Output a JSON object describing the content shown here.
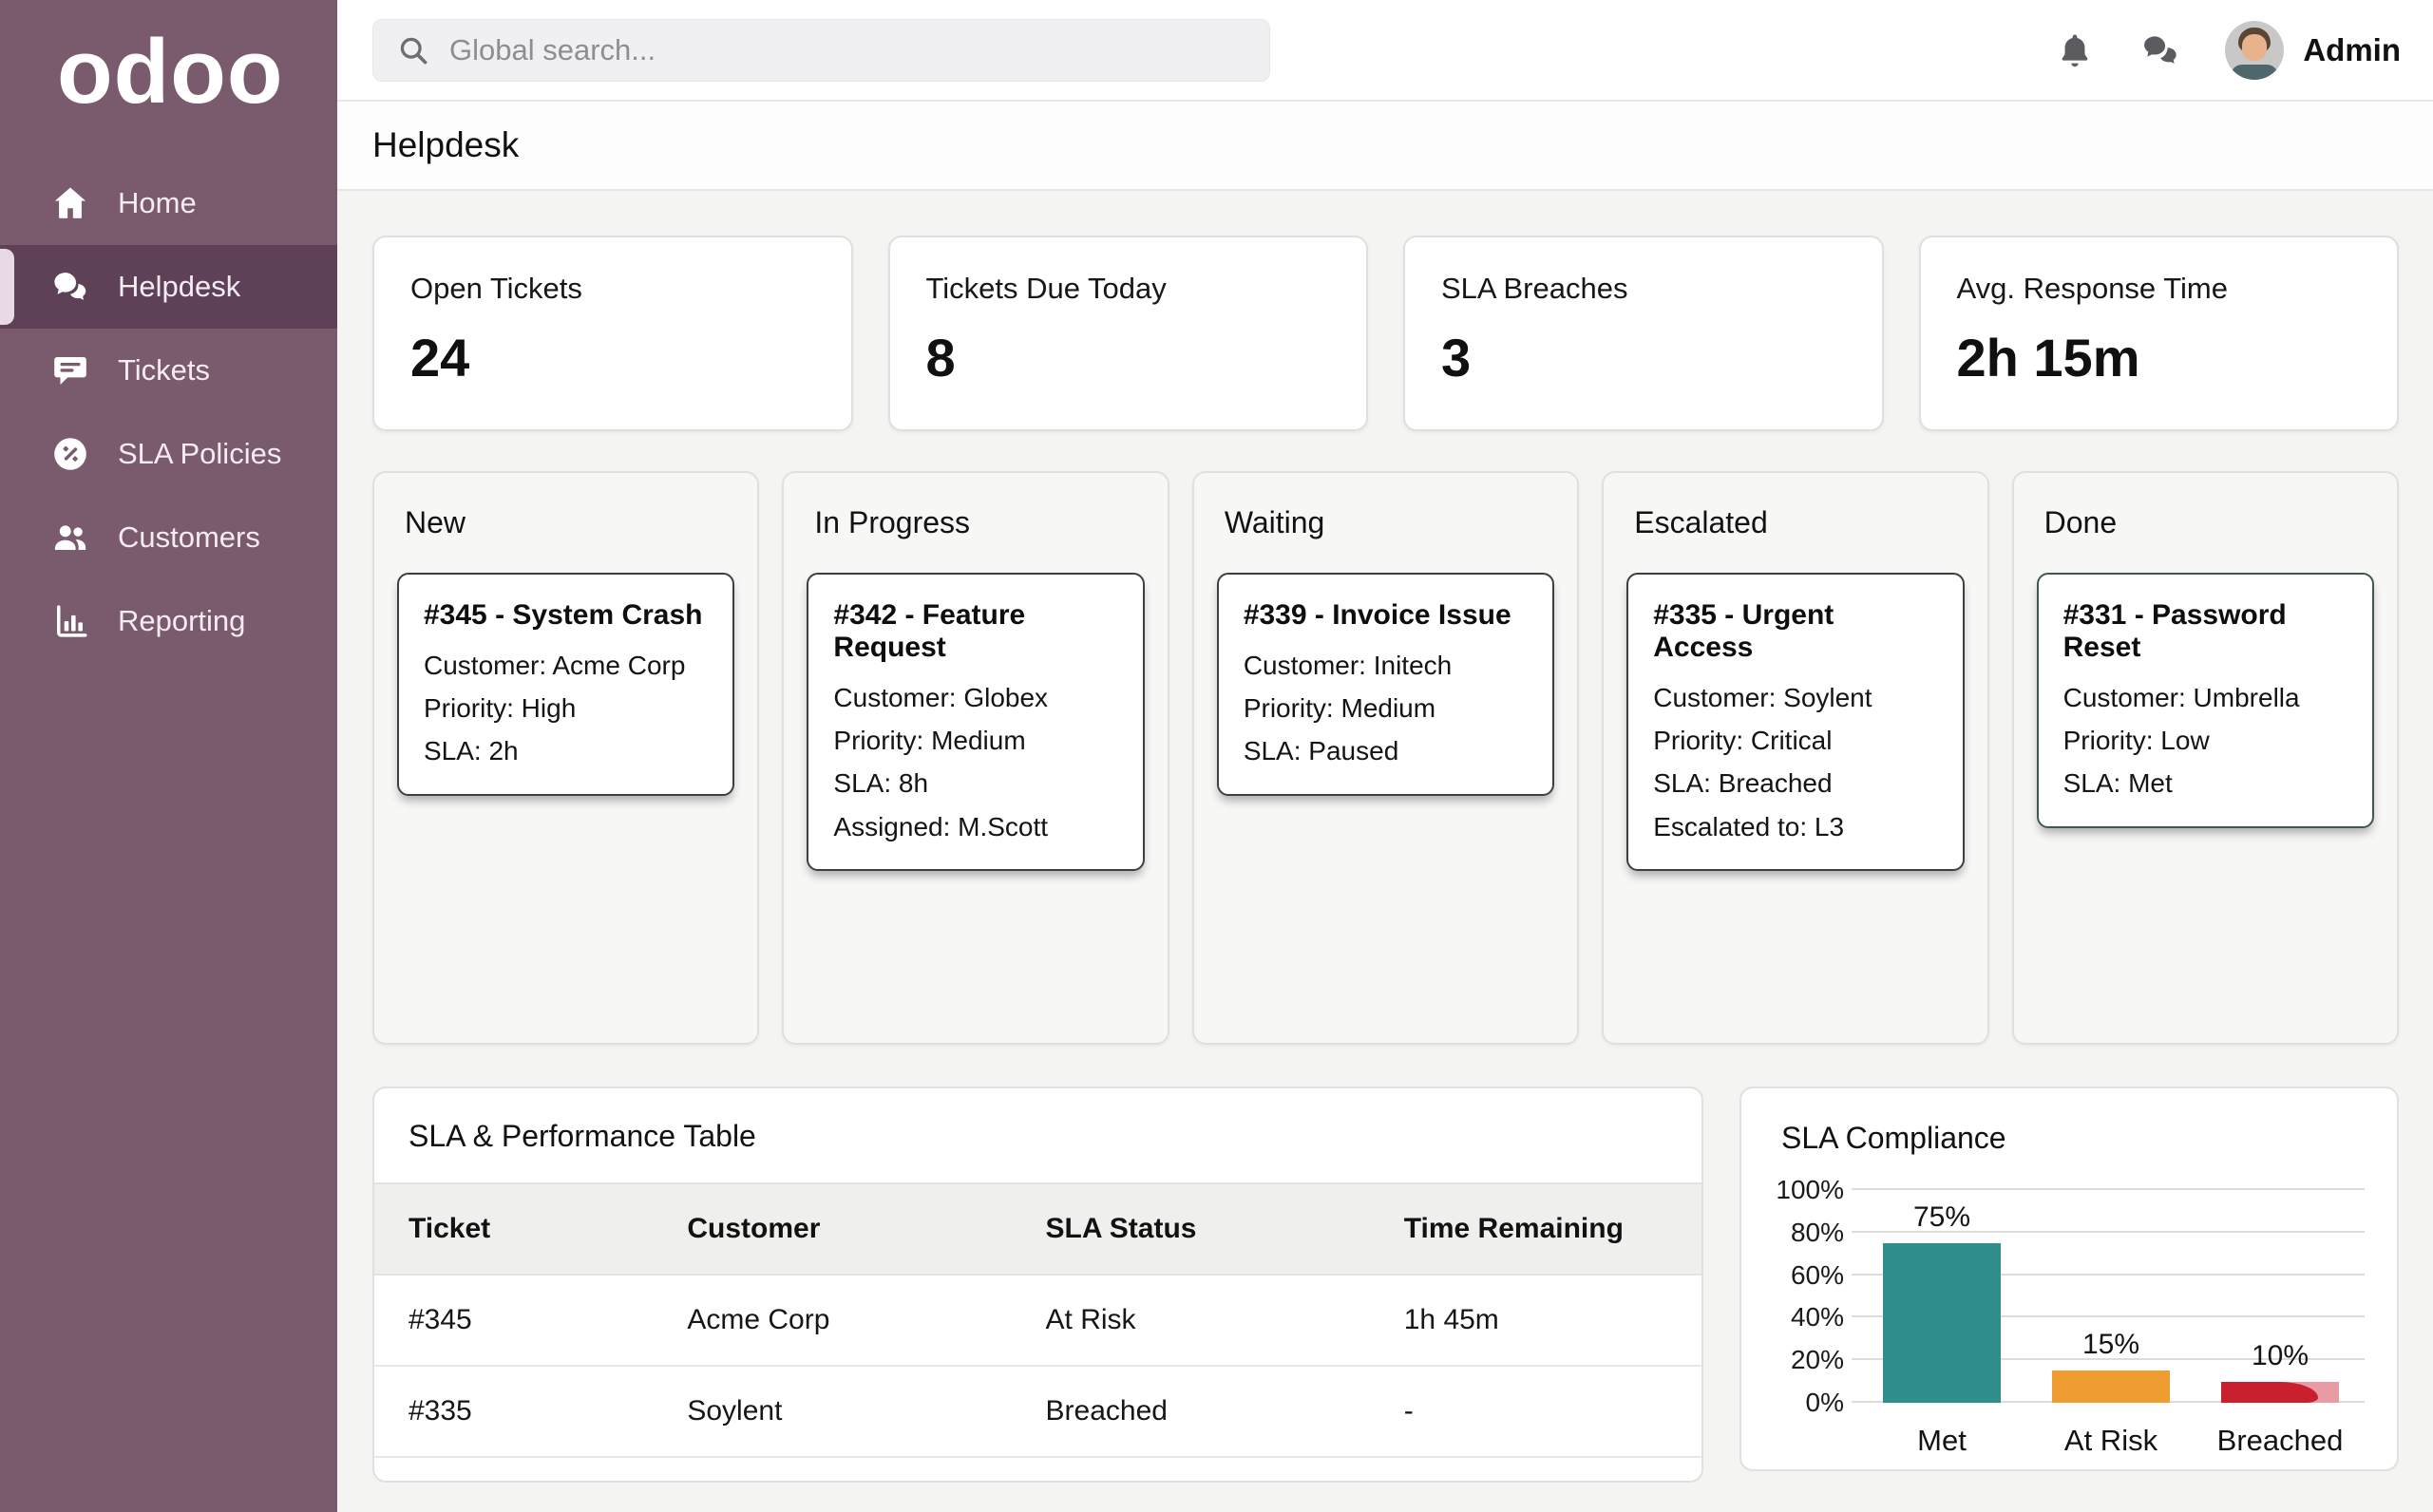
{
  "app": {
    "logo_text": "odoo"
  },
  "topbar": {
    "search_placeholder": "Global search...",
    "user_label": "Admin"
  },
  "sidebar": {
    "items": [
      {
        "label": "Home",
        "icon": "home-icon",
        "active": false
      },
      {
        "label": "Helpdesk",
        "icon": "chat-bubbles-icon",
        "active": true
      },
      {
        "label": "Tickets",
        "icon": "ticket-bubble-icon",
        "active": false
      },
      {
        "label": "SLA Policies",
        "icon": "percent-circle-icon",
        "active": false
      },
      {
        "label": "Customers",
        "icon": "people-icon",
        "active": false
      },
      {
        "label": "Reporting",
        "icon": "bar-chart-icon",
        "active": false
      }
    ]
  },
  "page": {
    "title": "Helpdesk"
  },
  "kpis": [
    {
      "label": "Open Tickets",
      "value": "24"
    },
    {
      "label": "Tickets Due Today",
      "value": "8"
    },
    {
      "label": "SLA Breaches",
      "value": "3"
    },
    {
      "label": "Avg. Response Time",
      "value": "2h 15m"
    }
  ],
  "kanban": {
    "columns": [
      {
        "title": "New",
        "cards": [
          {
            "title": "#345 - System Crash",
            "lines": [
              "Customer: Acme Corp",
              "Priority: High",
              "SLA: 2h"
            ]
          }
        ]
      },
      {
        "title": "In Progress",
        "cards": [
          {
            "title": "#342 - Feature Request",
            "lines": [
              "Customer: Globex",
              "Priority: Medium",
              "SLA: 8h",
              "Assigned: M.Scott"
            ]
          }
        ]
      },
      {
        "title": "Waiting",
        "cards": [
          {
            "title": "#339 - Invoice Issue",
            "lines": [
              "Customer: Initech",
              "Priority: Medium",
              "SLA: Paused"
            ]
          }
        ]
      },
      {
        "title": "Escalated",
        "cards": [
          {
            "title": "#335 - Urgent Access",
            "lines": [
              "Customer: Soylent",
              "Priority: Critical",
              "SLA: Breached",
              "Escalated to: L3"
            ]
          }
        ]
      },
      {
        "title": "Done",
        "cards": [
          {
            "title": "#331 - Password Reset",
            "lines": [
              "Customer: Umbrella",
              "Priority: Low",
              "SLA: Met"
            ]
          }
        ]
      }
    ]
  },
  "sla_table": {
    "title": "SLA & Performance Table",
    "headers": [
      "Ticket",
      "Customer",
      "SLA Status",
      "Time Remaining"
    ],
    "rows": [
      [
        "#345",
        "Acme Corp",
        "At Risk",
        "1h 45m"
      ],
      [
        "#335",
        "Soylent",
        "Breached",
        "-"
      ]
    ]
  },
  "chart_data": {
    "type": "bar",
    "title": "SLA Compliance",
    "categories": [
      "Met",
      "At Risk",
      "Breached"
    ],
    "values": [
      75,
      15,
      10
    ],
    "value_labels": [
      "75%",
      "15%",
      "10%"
    ],
    "colors": [
      "#2f8e8c",
      "#ef9d30",
      "#c9202f"
    ],
    "breached_light": "#e99ba3",
    "yticks": [
      "100%",
      "80%",
      "60%",
      "40%",
      "20%",
      "0%"
    ],
    "ylim": [
      0,
      100
    ],
    "xlabel": "",
    "ylabel": "",
    "grid": "horizontal",
    "legend": "none"
  },
  "colors": {
    "sidebar_bg": "#7a5a6d",
    "sidebar_active_bg": "#5e4156",
    "content_bg": "#f4f4f2",
    "card_border_dark": "#3f3f3f",
    "done_card_border": "#3e5a50",
    "met_teal": "#2f8e8c",
    "at_risk_orange": "#ef9d30",
    "breached_red": "#c9202f"
  }
}
